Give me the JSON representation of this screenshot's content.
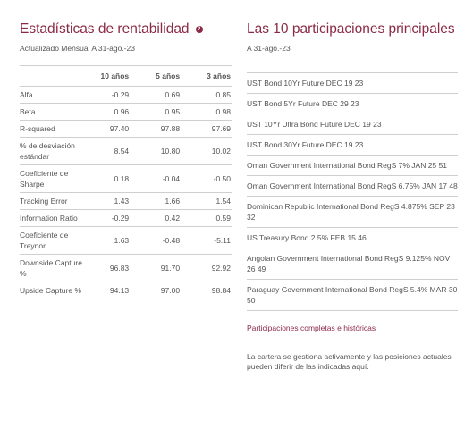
{
  "stats": {
    "title": "Estadísticas de rentabilidad",
    "info_icon": "info-icon",
    "updated": "Actualizado Mensual A 31-ago.-23",
    "columns": [
      "10 años",
      "5 años",
      "3 años"
    ],
    "rows": [
      {
        "label": "Alfa",
        "values": [
          "-0.29",
          "0.69",
          "0.85"
        ]
      },
      {
        "label": "Beta",
        "values": [
          "0.96",
          "0.95",
          "0.98"
        ]
      },
      {
        "label": "R-squared",
        "values": [
          "97.40",
          "97.88",
          "97.69"
        ]
      },
      {
        "label": "% de desviación estándar",
        "values": [
          "8.54",
          "10.80",
          "10.02"
        ]
      },
      {
        "label": "Coeficiente de Sharpe",
        "values": [
          "0.18",
          "-0.04",
          "-0.50"
        ]
      },
      {
        "label": "Tracking Error",
        "values": [
          "1.43",
          "1.66",
          "1.54"
        ]
      },
      {
        "label": "Information Ratio",
        "values": [
          "-0.29",
          "0.42",
          "0.59"
        ]
      },
      {
        "label": "Coeficiente de Treynor",
        "values": [
          "1.63",
          "-0.48",
          "-5.11"
        ]
      },
      {
        "label": "Downside Capture %",
        "values": [
          "96.83",
          "91.70",
          "92.92"
        ]
      },
      {
        "label": "Upside Capture %",
        "values": [
          "94.13",
          "97.00",
          "98.84"
        ]
      }
    ]
  },
  "holdings": {
    "title": "Las 10 participaciones principales",
    "date": "A 31-ago.-23",
    "items": [
      "UST Bond 10Yr Future DEC 19 23",
      "UST Bond 5Yr Future DEC 29 23",
      "UST 10Yr Ultra Bond Future DEC 19 23",
      "UST Bond 30Yr Future DEC 19 23",
      "Oman Government International Bond RegS 7% JAN 25 51",
      "Oman Government International Bond RegS 6.75% JAN 17 48",
      "Dominican Republic International Bond RegS 4.875% SEP 23 32",
      "US Treasury Bond 2.5% FEB 15 46",
      "Angolan Government International Bond RegS 9.125% NOV 26 49",
      "Paraguay Government International Bond RegS 5.4% MAR 30 50"
    ],
    "link": "Participaciones completas e históricas",
    "note": "La cartera se gestiona activamente y las posiciones actuales pueden diferir de las indicadas aquí."
  }
}
